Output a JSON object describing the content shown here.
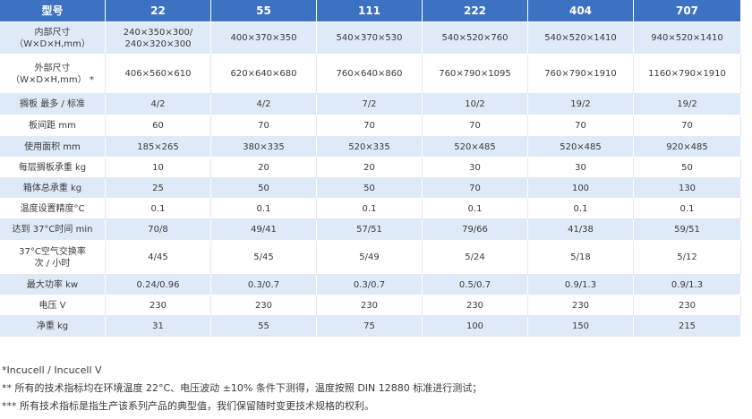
{
  "table": {
    "header": [
      "型号",
      "22",
      "55",
      "111",
      "222",
      "404",
      "707"
    ],
    "rows": [
      {
        "label": [
          "内部尺寸",
          "（W×D×H,mm）"
        ],
        "cells": [
          [
            "240×350×300/",
            "240×320×300"
          ],
          [
            "400×370×350"
          ],
          [
            "540×370×530"
          ],
          [
            "540×520×760"
          ],
          [
            "540×520×1410"
          ],
          [
            "940×520×1410"
          ]
        ]
      },
      {
        "label": [
          "外部尺寸",
          "（W×D×H,mm） *"
        ],
        "cells": [
          [
            "406×560×610"
          ],
          [
            "620×640×680"
          ],
          [
            "760×640×860"
          ],
          [
            "760×790×1095"
          ],
          [
            "760×790×1910"
          ],
          [
            "1160×790×1910"
          ]
        ]
      },
      {
        "label": [
          "搁板 最多 / 标准"
        ],
        "cells": [
          [
            "4/2"
          ],
          [
            "4/2"
          ],
          [
            "7/2"
          ],
          [
            "10/2"
          ],
          [
            "19/2"
          ],
          [
            "19/2"
          ]
        ]
      },
      {
        "label": [
          "板间距 mm"
        ],
        "cells": [
          [
            "60"
          ],
          [
            "70"
          ],
          [
            "70"
          ],
          [
            "70"
          ],
          [
            "70"
          ],
          [
            "70"
          ]
        ]
      },
      {
        "label": [
          "使用面积 mm"
        ],
        "cells": [
          [
            "185×265"
          ],
          [
            "380×335"
          ],
          [
            "520×335"
          ],
          [
            "520×485"
          ],
          [
            "520×485"
          ],
          [
            "920×485"
          ]
        ]
      },
      {
        "label": [
          "每层搁板承重 kg"
        ],
        "cells": [
          [
            "10"
          ],
          [
            "20"
          ],
          [
            "20"
          ],
          [
            "30"
          ],
          [
            "30"
          ],
          [
            "50"
          ]
        ]
      },
      {
        "label": [
          "箱体总承重 kg"
        ],
        "cells": [
          [
            "25"
          ],
          [
            "50"
          ],
          [
            "50"
          ],
          [
            "70"
          ],
          [
            "100"
          ],
          [
            "130"
          ]
        ]
      },
      {
        "label": [
          "温度设置精度°C"
        ],
        "cells": [
          [
            "0.1"
          ],
          [
            "0.1"
          ],
          [
            "0.1"
          ],
          [
            "0.1"
          ],
          [
            "0.1"
          ],
          [
            "0.1"
          ]
        ]
      },
      {
        "label": [
          "达到 37°C时间 min"
        ],
        "cells": [
          [
            "70/8"
          ],
          [
            "49/41"
          ],
          [
            "57/51"
          ],
          [
            "79/66"
          ],
          [
            "41/38"
          ],
          [
            "59/51"
          ]
        ]
      },
      {
        "label": [
          "37°C空气交换率",
          "次 / 小时"
        ],
        "cells": [
          [
            "4/45"
          ],
          [
            "5/45"
          ],
          [
            "5/49"
          ],
          [
            "5/24"
          ],
          [
            "5/18"
          ],
          [
            "5/12"
          ]
        ]
      },
      {
        "label": [
          "最大功率 kw"
        ],
        "cells": [
          [
            "0.24/0.96"
          ],
          [
            "0.3/0.7"
          ],
          [
            "0.3/0.7"
          ],
          [
            "0.5/0.7"
          ],
          [
            "0.9/1.3"
          ],
          [
            "0.9/1.3"
          ]
        ]
      },
      {
        "label": [
          "电压 V"
        ],
        "cells": [
          [
            "230"
          ],
          [
            "230"
          ],
          [
            "230"
          ],
          [
            "230"
          ],
          [
            "230"
          ],
          [
            "230"
          ]
        ]
      },
      {
        "label": [
          "净重 kg"
        ],
        "cells": [
          [
            "31"
          ],
          [
            "55"
          ],
          [
            "75"
          ],
          [
            "100"
          ],
          [
            "150"
          ],
          [
            "215"
          ]
        ]
      }
    ]
  },
  "notes": [
    "*Incucell / Incucell V",
    "** 所有的技术指标均在环境温度 22°C、电压波动 ±10% 条件下测得，温度按照 DIN 12880 标准进行测试；",
    "*** 所有技术指标是指生产该系列产品的典型值，我们保留随时变更技术规格的权利。"
  ],
  "colors": {
    "header_bg": "#3d72c2",
    "stripe_bg": "#dfeaf8",
    "text": "#3a3a3a"
  }
}
